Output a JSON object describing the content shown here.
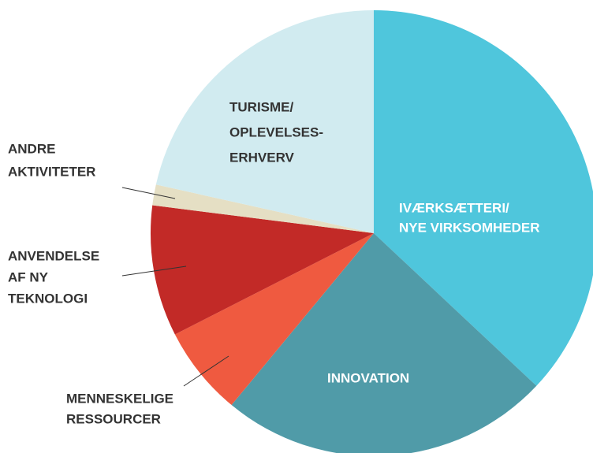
{
  "chart_data": {
    "type": "pie",
    "categories": [
      [
        "IVÆRKSÆTTERI/",
        "NYE VIRKSOMHEDER"
      ],
      [
        "INNOVATION"
      ],
      [
        "MENNESKELIGE",
        "RESSOURCER"
      ],
      [
        "ANVENDELSE",
        "AF NY",
        "TEKNOLOGI"
      ],
      [
        "ANDRE",
        "AKTIVITETER"
      ],
      [
        "TURISME/",
        "OPLEVELSES-",
        "ERHVERV"
      ]
    ],
    "values": [
      37,
      24,
      6.5,
      9.5,
      1.5,
      21.5
    ],
    "colors": [
      "#4fc6dc",
      "#509ba8",
      "#ef5a40",
      "#c22a27",
      "#e5dfc4",
      "#d1ebf0"
    ]
  }
}
